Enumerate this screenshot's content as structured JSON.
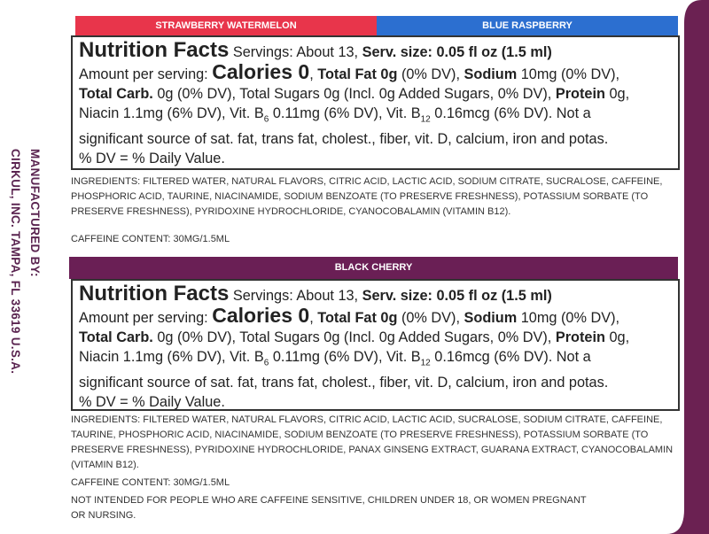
{
  "side_text": [
    "MANUFACTURED BY:",
    "CIRKUL, INC. TAMPA, FL 33619 U.S.A."
  ],
  "panels": [
    {
      "flavors": [
        "STRAWBERRY WATERMELON",
        "BLUE RASPBERRY"
      ],
      "nutrition": [
        "Nutrition Facts",
        "Servings: About 13,",
        "Serv. size: 0.05 fl oz (1.5 ml)",
        "Amount per serving:",
        "Calories 0",
        ",",
        "Total Fat 0g",
        "(0% DV),",
        "Sodium",
        "10mg (0% DV),",
        "Total Carb.",
        "0g (0% DV), Total Sugars 0g (Incl. 0g Added Sugars, 0% DV),",
        "Protein",
        "0g,",
        "Niacin 1.1mg (6% DV), Vit. B",
        "6",
        "0.11mg (6% DV), Vit. B",
        "12",
        "0.16mcg (6% DV). Not a",
        "significant source of sat. fat, trans fat, cholest., fiber, vit. D, calcium, iron and potas.",
        "% DV = % Daily Value."
      ],
      "ingredients": "INGREDIENTS: FILTERED WATER, NATURAL FLAVORS, CITRIC ACID, LACTIC ACID, SODIUM CITRATE, SUCRALOSE, CAFFEINE, PHOSPHORIC ACID, TAURINE, NIACINAMIDE, SODIUM BENZOATE (TO PRESERVE FRESHNESS), POTASSIUM SORBATE (TO PRESERVE FRESHNESS), PYRIDOXINE HYDROCHLORIDE, CYANOCOBALAMIN (VITAMIN B12).",
      "caffeine": "CAFFEINE CONTENT: 30MG/1.5ML"
    },
    {
      "flavors": [
        "BLACK CHERRY"
      ],
      "nutrition": [
        "Nutrition Facts",
        "Servings: About 13,",
        "Serv. size: 0.05 fl oz (1.5 ml)",
        "Amount per serving:",
        "Calories 0",
        ",",
        "Total Fat 0g",
        "(0% DV),",
        "Sodium",
        "10mg (0% DV),",
        "Total Carb.",
        "0g (0% DV), Total Sugars 0g (Incl. 0g Added Sugars, 0% DV),",
        "Protein",
        "0g,",
        "Niacin 1.1mg (6% DV), Vit. B",
        "6",
        "0.11mg (6% DV), Vit. B",
        "12",
        "0.16mcg (6% DV). Not a",
        "significant source of sat. fat, trans fat, cholest., fiber, vit. D, calcium, iron and potas.",
        "% DV = % Daily Value."
      ],
      "ingredients": "INGREDIENTS: FILTERED WATER, NATURAL FLAVORS, CITRIC ACID, LACTIC ACID, SUCRALOSE, SODIUM CITRATE, CAFFEINE, TAURINE, PHOSPHORIC ACID, NIACINAMIDE, SODIUM BENZOATE (TO PRESERVE FRESHNESS), POTASSIUM SORBATE (TO PRESERVE FRESHNESS), PYRIDOXINE HYDROCHLORIDE, PANAX GINSENG EXTRACT, GUARANA EXTRACT, CYANOCOBALAMIN (VITAMIN B12).",
      "caffeine": "CAFFEINE CONTENT: 30MG/1.5ML",
      "warning": "NOT INTENDED FOR PEOPLE WHO ARE CAFFEINE SENSITIVE, CHILDREN UNDER 18, OR WOMEN PREGNANT OR NURSING."
    }
  ]
}
